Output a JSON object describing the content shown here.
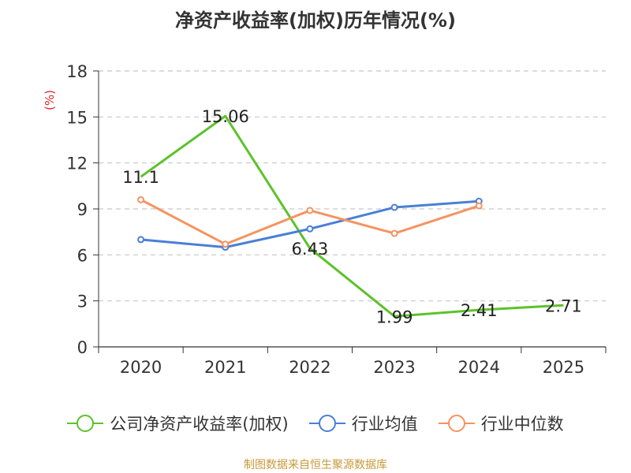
{
  "chart_data": {
    "type": "line",
    "title": "净资产收益率(加权)历年情况(%)",
    "ylabel": "(%)",
    "xlabel": "",
    "categories": [
      "2020",
      "2021",
      "2022",
      "2023",
      "2024",
      "2025"
    ],
    "ylim": [
      0,
      18
    ],
    "yticks": [
      0,
      3,
      6,
      9,
      12,
      15,
      18
    ],
    "grid": true,
    "legend_position": "bottom",
    "series": [
      {
        "name": "公司净资产收益率(加权)",
        "color": "#5cc22b",
        "values": [
          11.1,
          15.06,
          6.43,
          1.99,
          2.41,
          2.71
        ],
        "labels": [
          "11.1",
          "15.06",
          "6.43",
          "1.99",
          "2.41",
          "2.71"
        ],
        "show_labels": true,
        "show_markers": false
      },
      {
        "name": "行业均值",
        "color": "#4a7fd6",
        "values": [
          7.0,
          6.5,
          7.7,
          9.1,
          9.5,
          null
        ],
        "show_labels": false,
        "show_markers": true
      },
      {
        "name": "行业中位数",
        "color": "#f5935f",
        "values": [
          9.6,
          6.7,
          8.9,
          7.4,
          9.2,
          null
        ],
        "show_labels": false,
        "show_markers": true
      }
    ]
  },
  "source": "制图数据来自恒生聚源数据库"
}
